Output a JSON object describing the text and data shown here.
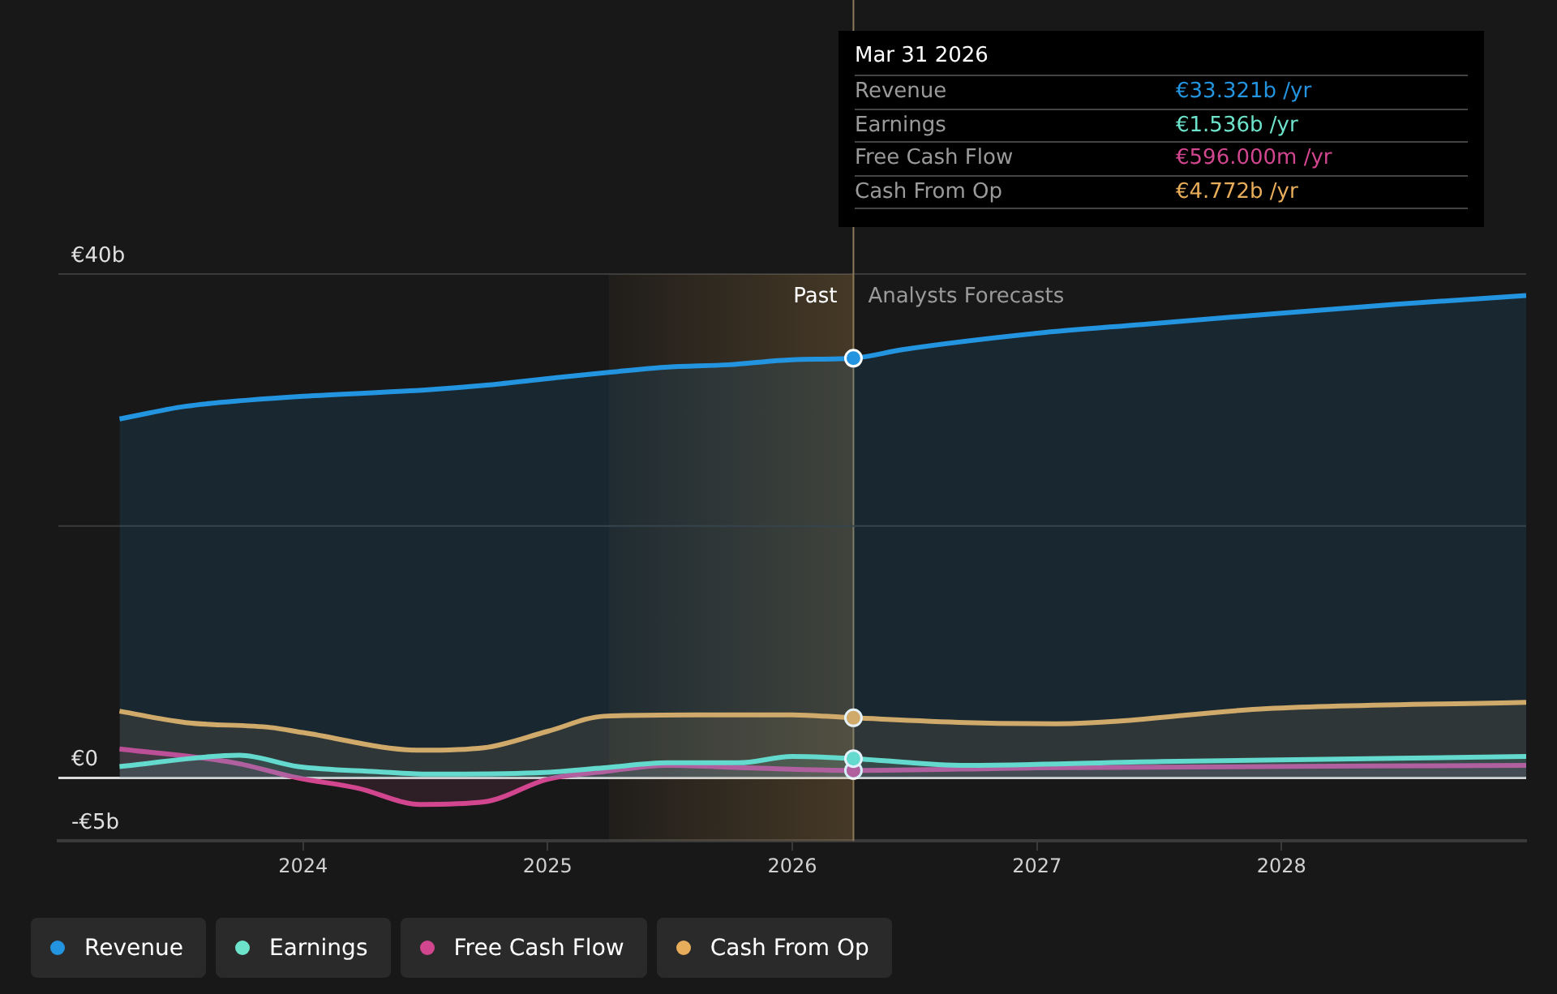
{
  "chart_data": {
    "type": "area",
    "xlim": [
      2023,
      2029
    ],
    "xticks": [
      2024,
      2025,
      2026,
      2027,
      2028
    ],
    "ylim": [
      -5,
      40
    ],
    "yticks": [
      {
        "value": -5,
        "label": "-€5b"
      },
      {
        "value": 0,
        "label": "€0"
      },
      {
        "value": 40,
        "label": "€40b"
      }
    ],
    "grid": "y",
    "legend": "bottom",
    "series": [
      {
        "name": "Revenue",
        "color": "#2394df",
        "x": [
          2023.25,
          2023.52,
          2023.78,
          2024.0,
          2024.5,
          2024.76,
          2025.0,
          2025.25,
          2025.48,
          2025.74,
          2026.0,
          2026.25,
          2026.45,
          2027.0,
          2027.43,
          2028.0,
          2028.47,
          2029.0
        ],
        "values": [
          28.5,
          29.5,
          30.0,
          30.3,
          30.8,
          31.2,
          31.7,
          32.2,
          32.6,
          32.8,
          33.2,
          33.321,
          34.0,
          35.3,
          36.0,
          36.9,
          37.6,
          38.3
        ]
      },
      {
        "name": "Earnings",
        "color": "#6ee3cb",
        "x": [
          2023.25,
          2023.74,
          2023.98,
          2024.3,
          2024.52,
          2024.95,
          2025.23,
          2025.49,
          2025.78,
          2026.0,
          2026.25,
          2026.71,
          2027.51,
          2029.0
        ],
        "values": [
          0.9,
          1.8,
          0.9,
          0.5,
          0.3,
          0.4,
          0.8,
          1.2,
          1.2,
          1.7,
          1.536,
          1.0,
          1.3,
          1.7
        ]
      },
      {
        "name": "Free Cash Flow",
        "color": "#d1468f",
        "x": [
          2023.25,
          2023.72,
          2023.98,
          2024.22,
          2024.48,
          2024.74,
          2025.0,
          2025.23,
          2025.49,
          2025.82,
          2026.25,
          2027.0,
          2029.0
        ],
        "values": [
          2.3,
          1.2,
          0.0,
          -0.8,
          -2.1,
          -1.9,
          -0.1,
          0.5,
          1.0,
          0.8,
          0.596,
          0.8,
          1.0
        ]
      },
      {
        "name": "Cash From Op",
        "color": "#e8ad5a",
        "x": [
          2023.25,
          2023.52,
          2023.87,
          2024.0,
          2024.48,
          2024.74,
          2025.0,
          2025.23,
          2025.6,
          2026.0,
          2026.25,
          2026.71,
          2027.08,
          2027.94,
          2029.0
        ],
        "values": [
          5.3,
          4.4,
          4.0,
          3.6,
          2.2,
          2.4,
          3.7,
          4.9,
          5.0,
          5.0,
          4.772,
          4.4,
          4.3,
          5.5,
          6.0
        ]
      }
    ],
    "bands": [
      {
        "axis": "x",
        "from": 2025.25,
        "to": 2026.25,
        "label": "Past",
        "color": "#e8ad5a"
      }
    ],
    "ref_lines": [
      {
        "axis": "x",
        "value": 2026.25,
        "label": "Analysts Forecasts",
        "color": "#8a7a5a"
      },
      {
        "axis": "y",
        "value": 20,
        "color": "#3a3a3a"
      }
    ],
    "annotations": [
      "Mar 31 2026",
      "Revenue",
      "€33.321b /yr",
      "Earnings",
      "€1.536b /yr",
      "Free Cash Flow",
      "€596.000m /yr",
      "Cash From Op",
      "€4.772b /yr"
    ]
  }
}
